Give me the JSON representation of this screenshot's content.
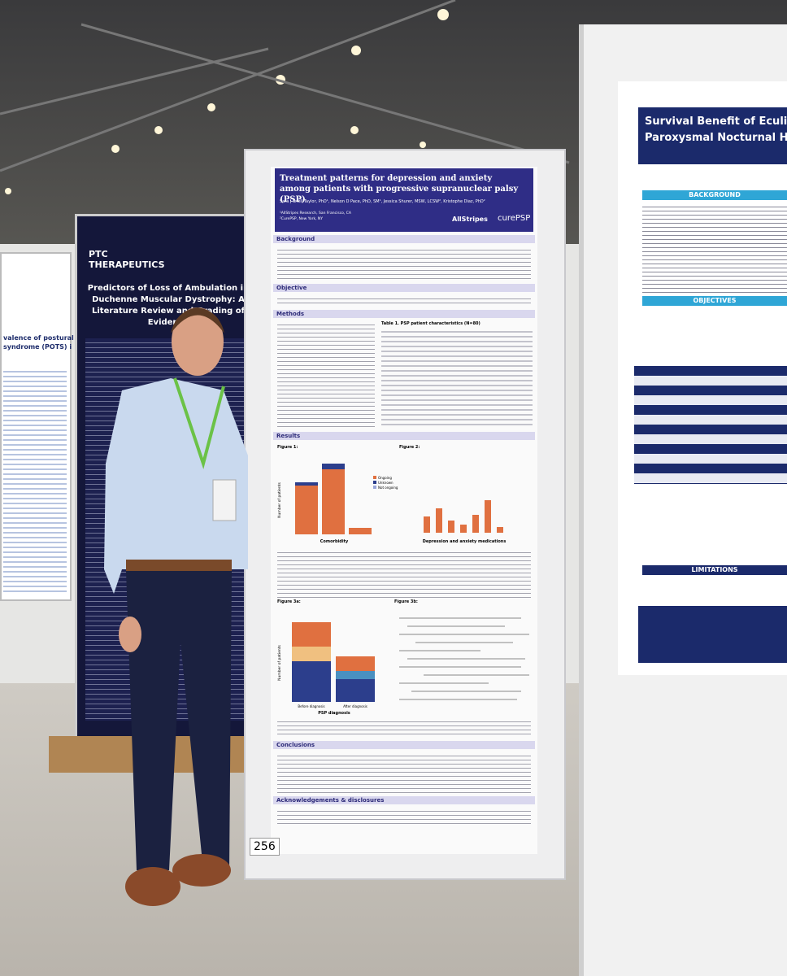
{
  "main_poster": {
    "title": "Treatment patterns for depression and anxiety among patients with progressive supranuclear palsy (PSP)",
    "authors": "Sara J Snell Taylor, PhD¹, Nelson D Pace, PhD, SM¹, Jessica Shurer, MSW, LCSW², Kristophe Diaz, PhD²",
    "affiliations": [
      "¹AllStripes Research, San Francisco, CA",
      "²CurePSP, New York, NY"
    ],
    "logos": [
      "AllStripes",
      "curePSP"
    ],
    "sections": [
      "Background",
      "Objective",
      "Methods",
      "Results",
      "Conclusions",
      "Acknowledgements & disclosures"
    ],
    "table_title": "Table 1. PSP patient characteristics (N=80)",
    "figures": [
      "Figure 1:",
      "Figure 2:",
      "Figure 3a:",
      "Figure 3b:"
    ],
    "axis_labels": {
      "y": "Number of patients",
      "fig1_x": "Comorbidity",
      "fig2_x": "Depression and anxiety medications",
      "fig3a_x": "PSP diagnosis",
      "fig3a_cats": [
        "Before diagnosis",
        "After diagnosis"
      ]
    },
    "legend": [
      "Ongoing",
      "Unknown",
      "Not ongoing"
    ],
    "poster_number": "256"
  },
  "left_poster": {
    "logo": "PTC THERAPEUTICS",
    "title": "Predictors of Loss of Ambulation in Duchenne Muscular Dystrophy: A Literature Review and Grading of Evidence"
  },
  "far_left_poster": {
    "title": [
      "valence of postural ortho",
      "syndrome (POTS) i"
    ]
  },
  "right_poster": {
    "title": [
      "Survival Benefit of Eculi",
      "Paroxysmal Nocturnal H"
    ],
    "sections": [
      "BACKGROUND",
      "OBJECTIVES",
      "LIMITATIONS"
    ]
  }
}
